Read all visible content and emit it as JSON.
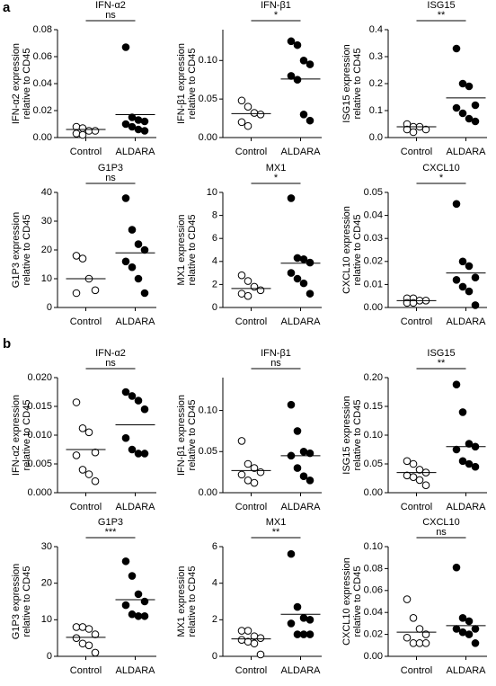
{
  "panel_labels": [
    "a",
    "b"
  ],
  "chart_data": [
    {
      "type": "scatter",
      "title": "IFN-α2",
      "ylabel": [
        "IFN-α2 expression",
        "relative to CD45"
      ],
      "annotation": "ns",
      "categories": [
        "Control",
        "ALDARA"
      ],
      "marker_fill": [
        "#ffffff",
        "#000000"
      ],
      "values": [
        [
          0.008,
          0.007,
          0.005,
          0.005,
          0.003,
          0.002
        ],
        [
          0.067,
          0.015,
          0.013,
          0.012,
          0.01,
          0.008,
          0.006,
          0.005
        ]
      ],
      "means": [
        0.006,
        0.017
      ],
      "ylim": [
        0,
        0.08
      ],
      "yticks": [
        {
          "value": 0,
          "label": "0.00"
        },
        0.02,
        0.04,
        0.06,
        0.08
      ]
    },
    {
      "type": "scatter",
      "title": "IFN-β1",
      "ylabel": [
        "IFN-β1 expression",
        "relative to CD45"
      ],
      "annotation": "*",
      "categories": [
        "Control",
        "ALDARA"
      ],
      "marker_fill": [
        "#ffffff",
        "#000000"
      ],
      "values": [
        [
          0.048,
          0.04,
          0.032,
          0.03,
          0.02,
          0.015
        ],
        [
          0.125,
          0.12,
          0.1,
          0.095,
          0.08,
          0.075,
          0.03,
          0.022
        ]
      ],
      "means": [
        0.031,
        0.076
      ],
      "ylim": [
        0,
        0.14
      ],
      "yticks": [
        {
          "value": 0,
          "label": "0.00"
        },
        0.05,
        {
          "value": 0.1,
          "label": "0.10"
        }
      ]
    },
    {
      "type": "scatter",
      "title": "ISG15",
      "ylabel": [
        "ISG15 expression",
        "relative to CD45"
      ],
      "annotation": "**",
      "categories": [
        "Control",
        "ALDARA"
      ],
      "marker_fill": [
        "#ffffff",
        "#000000"
      ],
      "values": [
        [
          0.05,
          0.04,
          0.04,
          0.03,
          0.03,
          0.02
        ],
        [
          0.33,
          0.2,
          0.19,
          0.12,
          0.11,
          0.09,
          0.07,
          0.06
        ]
      ],
      "means": [
        0.04,
        0.147
      ],
      "ylim": [
        0,
        0.4
      ],
      "yticks": [
        {
          "value": 0,
          "label": "0.0"
        },
        0.1,
        0.2,
        0.3,
        0.4
      ]
    },
    {
      "type": "scatter",
      "title": "G1P3",
      "ylabel": [
        "G1P3 expression",
        "relative to CD45"
      ],
      "annotation": "ns",
      "categories": [
        "Control",
        "ALDARA"
      ],
      "marker_fill": [
        "#ffffff",
        "#000000"
      ],
      "values": [
        [
          18,
          17,
          10,
          6,
          5
        ],
        [
          38,
          27,
          22,
          20,
          16,
          14,
          10,
          5
        ]
      ],
      "means": [
        10,
        19
      ],
      "ylim": [
        0,
        40
      ],
      "yticks": [
        0,
        10,
        20,
        30,
        40
      ]
    },
    {
      "type": "scatter",
      "title": "MX1",
      "ylabel": [
        "MX1 expression",
        "relative to CD45"
      ],
      "annotation": "*",
      "categories": [
        "Control",
        "ALDARA"
      ],
      "marker_fill": [
        "#ffffff",
        "#000000"
      ],
      "values": [
        [
          2.8,
          2.3,
          1.8,
          1.5,
          1.2,
          1.0
        ],
        [
          9.5,
          4.3,
          4.2,
          3.9,
          3.0,
          2.5,
          2.1,
          1.2
        ]
      ],
      "means": [
        1.65,
        3.85
      ],
      "ylim": [
        0,
        10
      ],
      "yticks": [
        0,
        2,
        4,
        6,
        8,
        10
      ]
    },
    {
      "type": "scatter",
      "title": "CXCL10",
      "ylabel": [
        "CXCL10 expression",
        "relative to CD45"
      ],
      "annotation": "*",
      "categories": [
        "Control",
        "ALDARA"
      ],
      "marker_fill": [
        "#ffffff",
        "#000000"
      ],
      "values": [
        [
          0.004,
          0.004,
          0.003,
          0.003,
          0.002,
          0.002
        ],
        [
          0.045,
          0.02,
          0.018,
          0.013,
          0.012,
          0.009,
          0.007,
          0.001
        ]
      ],
      "means": [
        0.003,
        0.015
      ],
      "ylim": [
        0,
        0.05
      ],
      "yticks": [
        {
          "value": 0,
          "label": "0.00"
        },
        0.01,
        0.02,
        0.03,
        0.04,
        0.05
      ]
    },
    {
      "type": "scatter",
      "title": "IFN-α2",
      "ylabel": [
        "IFN-α2 expression",
        "relative to CD45"
      ],
      "annotation": "ns",
      "categories": [
        "Control",
        "ALDARA"
      ],
      "marker_fill": [
        "#ffffff",
        "#000000"
      ],
      "values": [
        [
          0.0157,
          0.0112,
          0.0105,
          0.007,
          0.0065,
          0.004,
          0.0032,
          0.002
        ],
        [
          0.0175,
          0.0168,
          0.016,
          0.0145,
          0.0095,
          0.0075,
          0.0068,
          0.0068
        ]
      ],
      "means": [
        0.0075,
        0.0118
      ],
      "ylim": [
        0,
        0.02
      ],
      "yticks": [
        {
          "value": 0,
          "label": "0.000"
        },
        {
          "value": 0.005,
          "label": "0.005"
        },
        {
          "value": 0.01,
          "label": "0.010"
        },
        {
          "value": 0.015,
          "label": "0.015"
        },
        {
          "value": 0.02,
          "label": "0.020"
        }
      ]
    },
    {
      "type": "scatter",
      "title": "IFN-β1",
      "ylabel": [
        "IFN-β1 expression",
        "relative to CD45"
      ],
      "annotation": "ns",
      "categories": [
        "Control",
        "ALDARA"
      ],
      "marker_fill": [
        "#ffffff",
        "#000000"
      ],
      "values": [
        [
          0.063,
          0.035,
          0.03,
          0.025,
          0.022,
          0.015,
          0.012
        ],
        [
          0.107,
          0.075,
          0.05,
          0.048,
          0.045,
          0.03,
          0.02,
          0.015
        ]
      ],
      "means": [
        0.027,
        0.045
      ],
      "ylim": [
        0,
        0.14
      ],
      "yticks": [
        {
          "value": 0,
          "label": "0.00"
        },
        0.05,
        {
          "value": 0.1,
          "label": "0.10"
        }
      ]
    },
    {
      "type": "scatter",
      "title": "ISG15",
      "ylabel": [
        "ISG15 expression",
        "relative to CD45"
      ],
      "annotation": "**",
      "categories": [
        "Control",
        "ALDARA"
      ],
      "marker_fill": [
        "#ffffff",
        "#000000"
      ],
      "values": [
        [
          0.055,
          0.05,
          0.04,
          0.035,
          0.03,
          0.027,
          0.022,
          0.013
        ],
        [
          0.188,
          0.14,
          0.085,
          0.08,
          0.075,
          0.055,
          0.05,
          0.045
        ]
      ],
      "means": [
        0.035,
        0.08
      ],
      "ylim": [
        0,
        0.2
      ],
      "yticks": [
        {
          "value": 0,
          "label": "0.00"
        },
        0.05,
        {
          "value": 0.1,
          "label": "0.10"
        },
        0.15,
        {
          "value": 0.2,
          "label": "0.20"
        }
      ]
    },
    {
      "type": "scatter",
      "title": "G1P3",
      "ylabel": [
        "G1P3 expression",
        "relative to CD45"
      ],
      "annotation": "***",
      "categories": [
        "Control",
        "ALDARA"
      ],
      "marker_fill": [
        "#ffffff",
        "#000000"
      ],
      "values": [
        [
          8,
          8,
          7.5,
          6,
          5,
          3.5,
          3,
          1
        ],
        [
          26,
          22,
          17,
          15,
          14,
          11.5,
          11,
          11
        ]
      ],
      "means": [
        5.2,
        15.5
      ],
      "ylim": [
        0,
        30
      ],
      "yticks": [
        0,
        10,
        20,
        30
      ]
    },
    {
      "type": "scatter",
      "title": "MX1",
      "ylabel": [
        "MX1 expression",
        "relative to CD45"
      ],
      "annotation": "**",
      "categories": [
        "Control",
        "ALDARA"
      ],
      "marker_fill": [
        "#ffffff",
        "#000000"
      ],
      "values": [
        [
          1.4,
          1.4,
          1.1,
          1.0,
          0.9,
          0.8,
          0.7,
          0.1
        ],
        [
          5.6,
          2.7,
          2.1,
          2.0,
          1.8,
          1.2,
          1.2,
          1.2
        ]
      ],
      "means": [
        0.95,
        2.3
      ],
      "ylim": [
        0,
        6
      ],
      "yticks": [
        0,
        2,
        4,
        6
      ]
    },
    {
      "type": "scatter",
      "title": "CXCL10",
      "ylabel": [
        "CXCL10 expression",
        "relative to CD45"
      ],
      "annotation": "ns",
      "categories": [
        "Control",
        "ALDARA"
      ],
      "marker_fill": [
        "#ffffff",
        "#000000"
      ],
      "values": [
        [
          0.052,
          0.035,
          0.025,
          0.02,
          0.017,
          0.012,
          0.012,
          0.012
        ],
        [
          0.081,
          0.035,
          0.032,
          0.025,
          0.025,
          0.022,
          0.02,
          0.012
        ]
      ],
      "means": [
        0.022,
        0.028
      ],
      "ylim": [
        0,
        0.1
      ],
      "yticks": [
        {
          "value": 0,
          "label": "0.00"
        },
        0.02,
        0.04,
        0.06,
        0.08,
        {
          "value": 0.1,
          "label": "0.10"
        }
      ]
    }
  ]
}
